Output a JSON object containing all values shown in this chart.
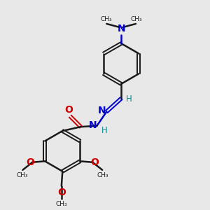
{
  "background_color": "#e8e8e8",
  "bond_color": "#1a1a1a",
  "N_color": "#0000cc",
  "O_color": "#cc0000",
  "H_color": "#008b8b",
  "figsize": [
    3.0,
    3.0
  ],
  "dpi": 100,
  "xlim": [
    0,
    10
  ],
  "ylim": [
    0,
    10
  ]
}
